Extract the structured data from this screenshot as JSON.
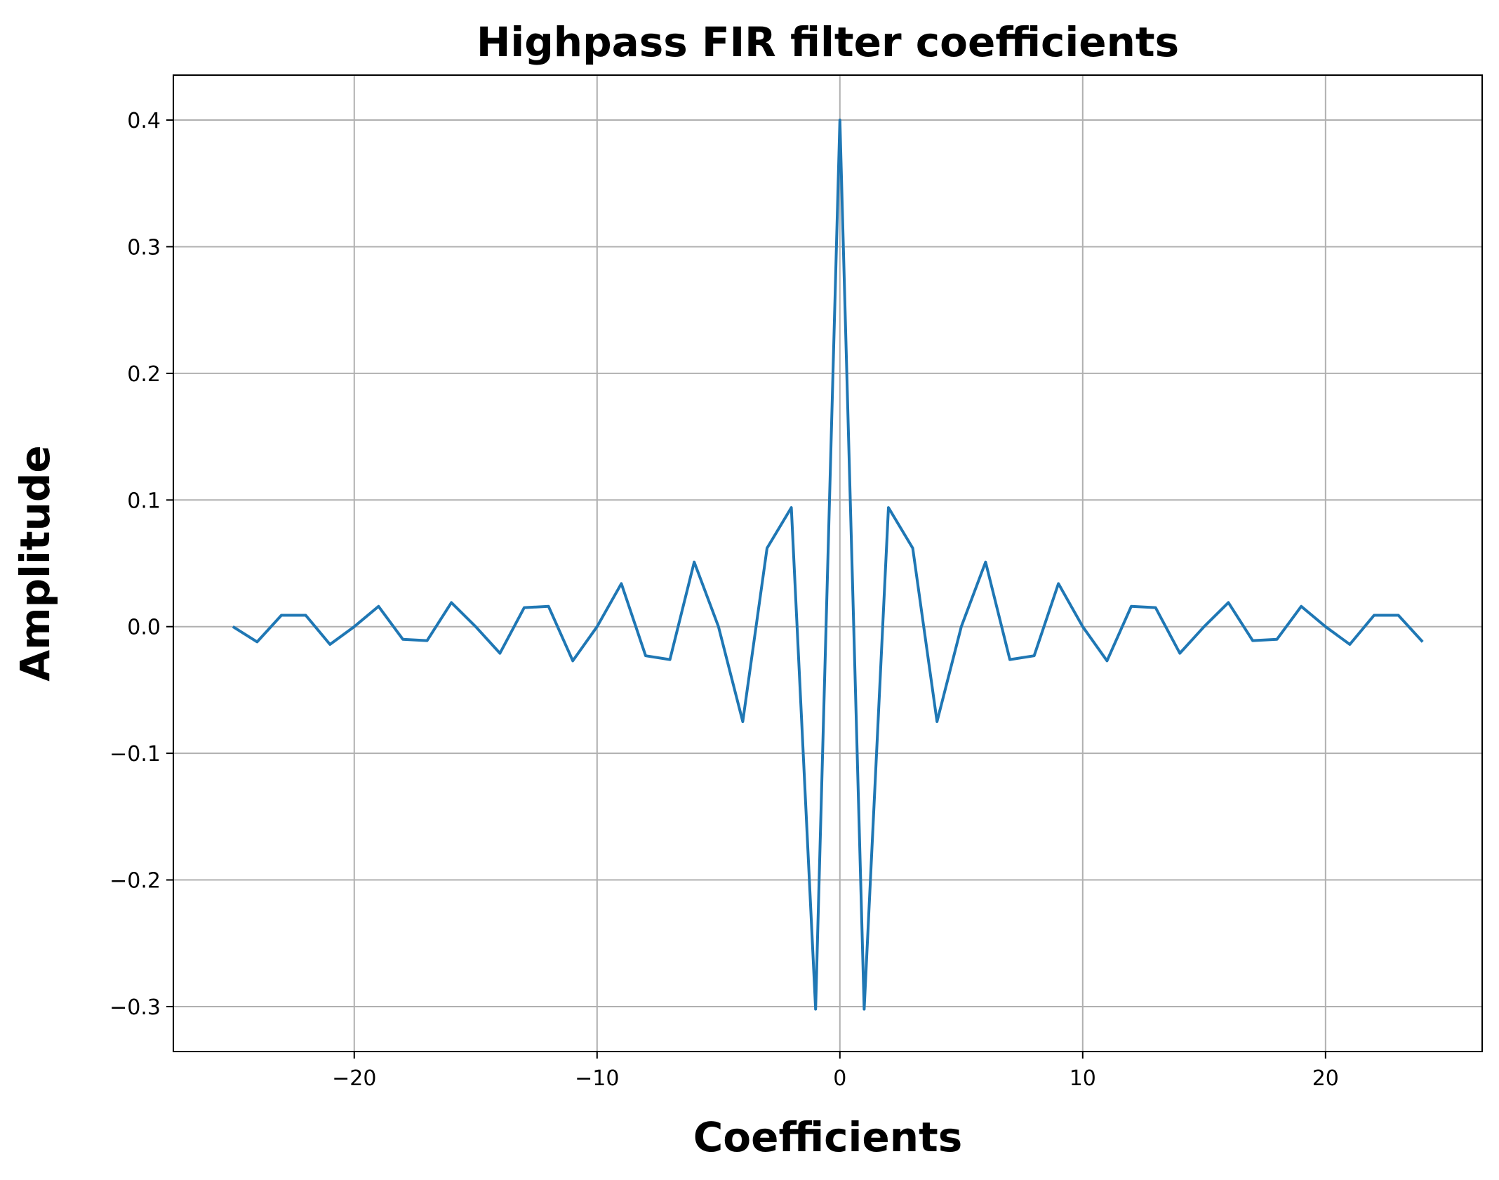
{
  "chart_data": {
    "type": "line",
    "title": "Highpass FIR filter coefficients",
    "xlabel": "Coefficients",
    "ylabel": "Amplitude",
    "xlim": [
      -27.45,
      26.45
    ],
    "ylim": [
      -0.3355,
      0.4355
    ],
    "xticks": [
      -20,
      -10,
      0,
      10,
      20
    ],
    "xtick_labels": [
      "−20",
      "−10",
      "0",
      "10",
      "20"
    ],
    "yticks": [
      -0.3,
      -0.2,
      -0.1,
      0.0,
      0.1,
      0.2,
      0.3,
      0.4
    ],
    "ytick_labels": [
      "−0.3",
      "−0.2",
      "−0.1",
      "0.0",
      "0.1",
      "0.2",
      "0.3",
      "0.4"
    ],
    "grid": true,
    "line_color": "#1f77b4",
    "grid_color": "#b0b0b0",
    "series": [
      {
        "x": [
          -25,
          -24,
          -23,
          -22,
          -21,
          -20,
          -19,
          -18,
          -17,
          -16,
          -15,
          -14,
          -13,
          -12,
          -11,
          -10,
          -9,
          -8,
          -7,
          -6,
          -5,
          -4,
          -3,
          -2,
          -1,
          0,
          1,
          2,
          3,
          4,
          5,
          6,
          7,
          8,
          9,
          10,
          11,
          12,
          13,
          14,
          15,
          16,
          17,
          18,
          19,
          20,
          21,
          22,
          23,
          24
        ],
        "y": [
          0.0,
          -0.012,
          0.009,
          0.009,
          -0.014,
          0.0,
          0.016,
          -0.01,
          -0.011,
          0.019,
          0.0,
          -0.021,
          0.015,
          0.016,
          -0.027,
          0.0,
          0.034,
          -0.023,
          -0.026,
          0.051,
          0.0,
          -0.075,
          0.062,
          0.094,
          -0.302,
          0.4,
          -0.302,
          0.094,
          0.062,
          -0.075,
          0.0,
          0.051,
          -0.026,
          -0.023,
          0.034,
          0.0,
          -0.027,
          0.016,
          0.015,
          -0.021,
          0.0,
          0.019,
          -0.011,
          -0.01,
          0.016,
          0.0,
          -0.014,
          0.009,
          0.009,
          -0.012
        ]
      }
    ]
  }
}
